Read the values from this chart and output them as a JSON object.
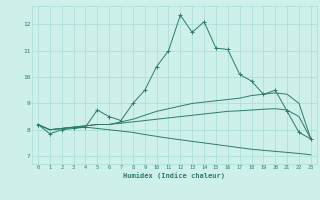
{
  "x": [
    0,
    1,
    2,
    3,
    4,
    5,
    6,
    7,
    8,
    9,
    10,
    11,
    12,
    13,
    14,
    15,
    16,
    17,
    18,
    19,
    20,
    21,
    22,
    23
  ],
  "line1": [
    8.2,
    7.85,
    8.0,
    8.05,
    8.1,
    8.75,
    8.5,
    8.35,
    9.0,
    9.5,
    10.4,
    11.0,
    12.35,
    11.7,
    12.1,
    11.1,
    11.05,
    10.1,
    9.85,
    9.35,
    9.5,
    8.7,
    7.9,
    7.65
  ],
  "line2": [
    8.2,
    8.0,
    8.05,
    8.1,
    8.15,
    8.2,
    8.2,
    8.3,
    8.4,
    8.55,
    8.7,
    8.8,
    8.9,
    9.0,
    9.05,
    9.1,
    9.15,
    9.2,
    9.3,
    9.35,
    9.4,
    9.35,
    9.0,
    7.65
  ],
  "line3": [
    8.2,
    8.0,
    8.05,
    8.1,
    8.15,
    8.2,
    8.2,
    8.25,
    8.3,
    8.35,
    8.4,
    8.45,
    8.5,
    8.55,
    8.6,
    8.65,
    8.7,
    8.72,
    8.75,
    8.78,
    8.8,
    8.75,
    8.5,
    7.65
  ],
  "line4": [
    8.2,
    8.0,
    8.05,
    8.08,
    8.1,
    8.05,
    8.0,
    7.95,
    7.9,
    7.82,
    7.75,
    7.68,
    7.62,
    7.56,
    7.5,
    7.44,
    7.38,
    7.32,
    7.26,
    7.22,
    7.18,
    7.14,
    7.1,
    7.05
  ],
  "bg_color": "#cef0ea",
  "line_color": "#2d7a6b",
  "grid_color": "#a8ddd6",
  "xlabel": "Humidex (Indice chaleur)",
  "ylim": [
    6.7,
    12.7
  ],
  "xlim": [
    -0.5,
    23.5
  ],
  "yticks": [
    7,
    8,
    9,
    10,
    11,
    12
  ],
  "xticks": [
    0,
    1,
    2,
    3,
    4,
    5,
    6,
    7,
    8,
    9,
    10,
    11,
    12,
    13,
    14,
    15,
    16,
    17,
    18,
    19,
    20,
    21,
    22,
    23
  ]
}
